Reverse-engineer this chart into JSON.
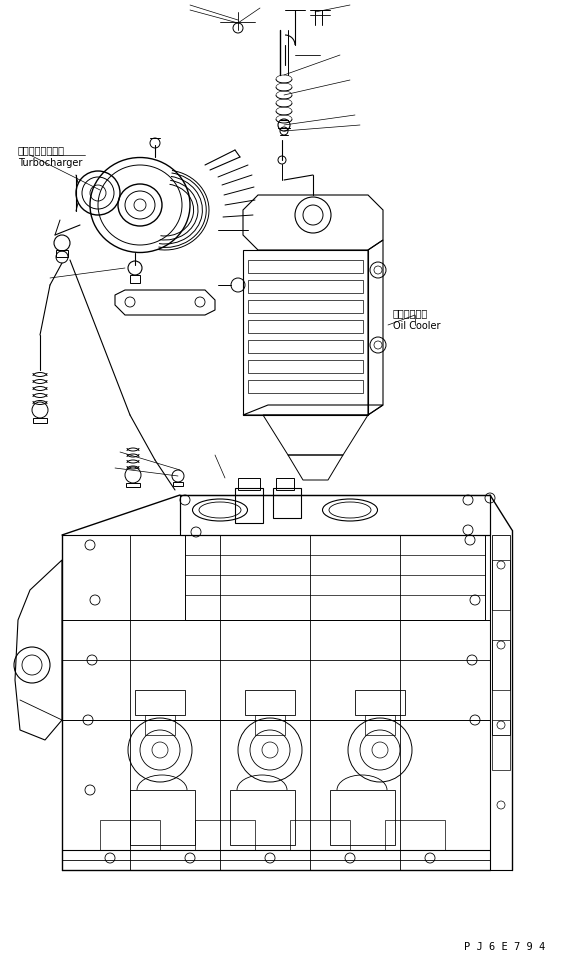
{
  "bg_color": "#ffffff",
  "line_color": "#000000",
  "fig_width": 5.62,
  "fig_height": 9.65,
  "dpi": 100,
  "label_turbocharger_jp": "ターボチャージャ",
  "label_turbocharger_en": "Turbocharger",
  "label_oilcooler_jp": "オイルクーラ",
  "label_oilcooler_en": "Oil Cooler",
  "part_number": "P J 6 E 7 9 4",
  "font_size_label": 7.0,
  "font_size_part": 7.5
}
